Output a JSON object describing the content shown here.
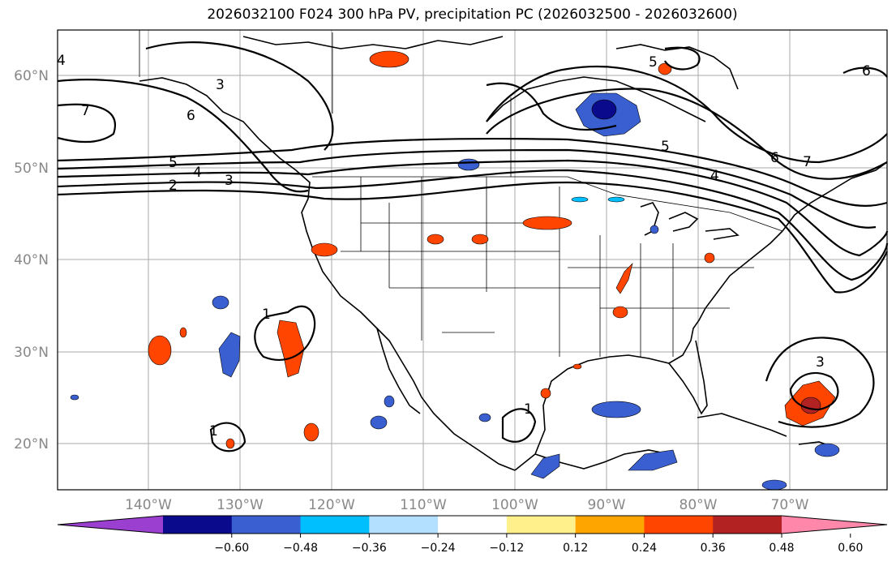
{
  "title": "2026032100 F024 300 hPa PV, precipitation PC (2026032500 - 2026032600)",
  "lat_labels": [
    "60°N",
    "50°N",
    "40°N",
    "30°N",
    "20°N"
  ],
  "lon_labels": [
    "140°W",
    "130°W",
    "120°W",
    "110°W",
    "100°W",
    "90°W",
    "80°W",
    "70°W"
  ],
  "pv_contour_labels": [
    "7",
    "6",
    "5",
    "4",
    "3",
    "2",
    "3",
    "5",
    "6",
    "7",
    "4",
    "5",
    "6",
    "1",
    "1",
    "1",
    "3",
    "4"
  ],
  "colorbar": {
    "ticks": [
      "−0.60",
      "−0.48",
      "−0.36",
      "−0.24",
      "−0.12",
      "0.12",
      "0.24",
      "0.36",
      "0.48",
      "0.60"
    ],
    "colors": [
      "#9a3fd0",
      "#0a0a8c",
      "#3a5fd0",
      "#00bfff",
      "#b3e0ff",
      "#ffffff",
      "#fff08c",
      "#ffa500",
      "#ff4500",
      "#b22222",
      "#ff88aa"
    ]
  }
}
